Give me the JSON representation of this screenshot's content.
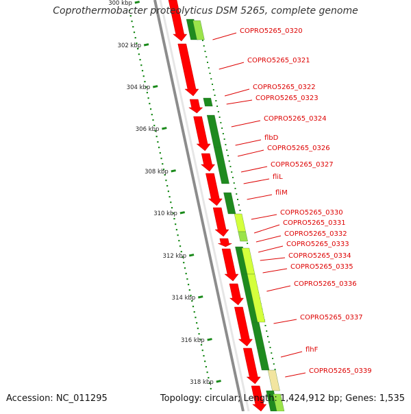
{
  "title": "Coprothermobacter proteolyticus DSM 5265, complete genome",
  "footer": {
    "accession": "Accession: NC_011295",
    "summary": "Topology: circular; Length: 1,424,912 bp; Genes: 1,535"
  },
  "colors": {
    "backbone": "#8c8c8c",
    "forward_strand": "#ff0000",
    "reverse_dark": "#1f8a1f",
    "reverse_light": "#9be34a",
    "reverse_yellow": "#d4ff3c",
    "reverse_pale": "#f2e5a0",
    "tick": "#1a8a1a",
    "label": "#dd0000"
  },
  "scale_ticks": [
    "300 kbp",
    "302 kbp",
    "304 kbp",
    "306 kbp",
    "308 kbp",
    "310 kbp",
    "312 kbp",
    "314 kbp",
    "316 kbp",
    "318 kbp"
  ],
  "gene_labels": [
    "COPRO5265_0320",
    "COPRO5265_0321",
    "COPRO5265_0322",
    "COPRO5265_0323",
    "COPRO5265_0324",
    "flbD",
    "COPRO5265_0326",
    "COPRO5265_0327",
    "fliL",
    "fliM",
    "COPRO5265_0330",
    "COPRO5265_0331",
    "COPRO5265_0332",
    "COPRO5265_0333",
    "COPRO5265_0334",
    "COPRO5265_0335",
    "COPRO5265_0336",
    "COPRO5265_0337",
    "flhF",
    "COPRO5265_0339"
  ]
}
